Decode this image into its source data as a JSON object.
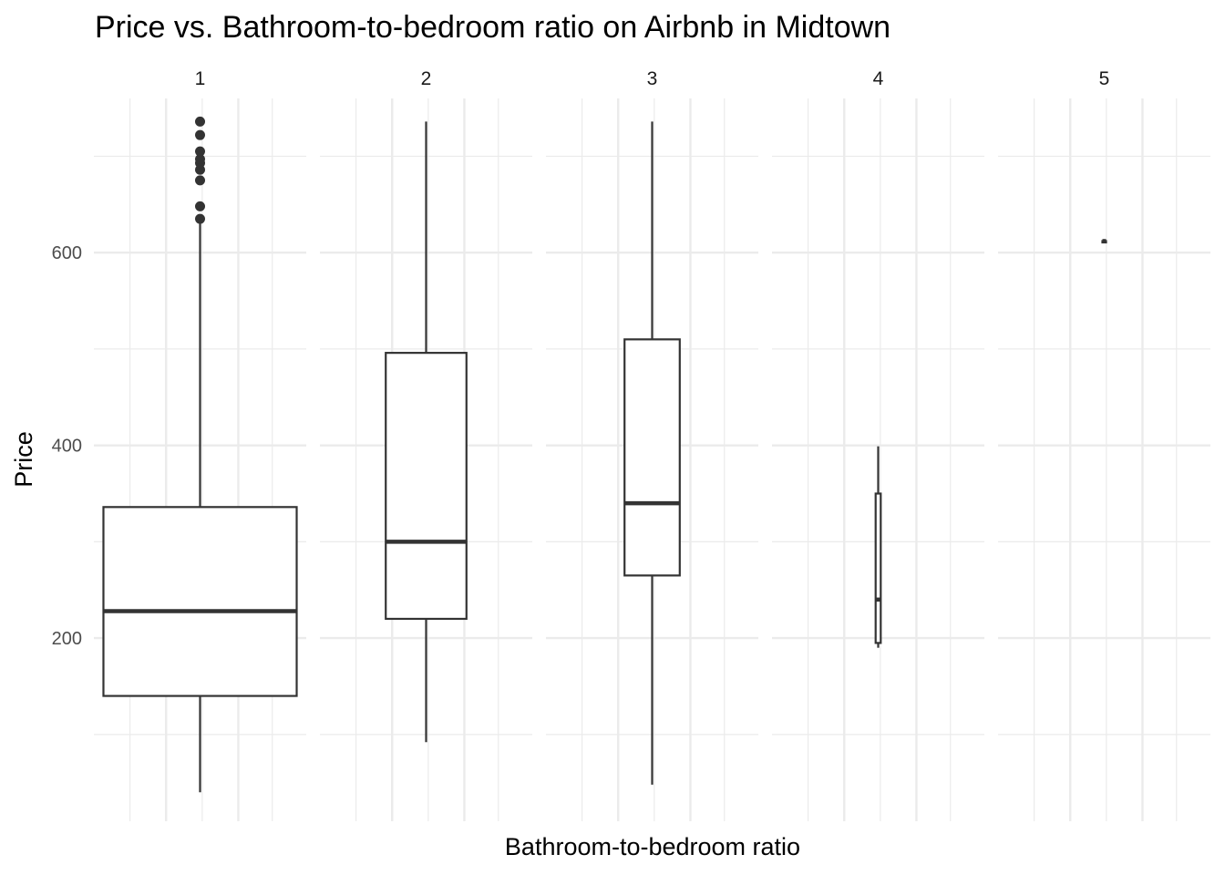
{
  "chart_data": {
    "type": "box",
    "title": "Price vs. Bathroom-to-bedroom ratio on Airbnb in Midtown",
    "xlabel": "Bathroom-to-bedroom ratio",
    "ylabel": "Price",
    "ylim": [
      10,
      760
    ],
    "y_ticks": [
      200,
      400,
      600
    ],
    "grid": true,
    "legend": "none",
    "colors": {
      "box_stroke": "#333333",
      "grid": "#ebebeb",
      "text": "#4d4d4d"
    },
    "facets": [
      {
        "label": "1",
        "boxes": [
          {
            "min": 40,
            "q1": 140,
            "median": 228,
            "q3": 336,
            "max": 630,
            "outliers": [
              635,
              648,
              675,
              686,
              693,
              697,
              705,
              722,
              736
            ]
          }
        ]
      },
      {
        "label": "2",
        "boxes": [
          {
            "min": 92,
            "q1": 220,
            "median": 300,
            "q3": 496,
            "max": 736,
            "outliers": []
          }
        ]
      },
      {
        "label": "3",
        "boxes": [
          {
            "min": 48,
            "q1": 265,
            "median": 340,
            "q3": 510,
            "max": 736,
            "outliers": []
          }
        ]
      },
      {
        "label": "4",
        "boxes": [
          {
            "min": 190,
            "q1": 195,
            "median": 240,
            "q3": 350,
            "max": 399,
            "outliers": []
          }
        ]
      },
      {
        "label": "5",
        "boxes": [
          {
            "min": 612,
            "q1": 612,
            "median": 612,
            "q3": 612,
            "max": 612,
            "outliers": []
          }
        ]
      }
    ]
  }
}
